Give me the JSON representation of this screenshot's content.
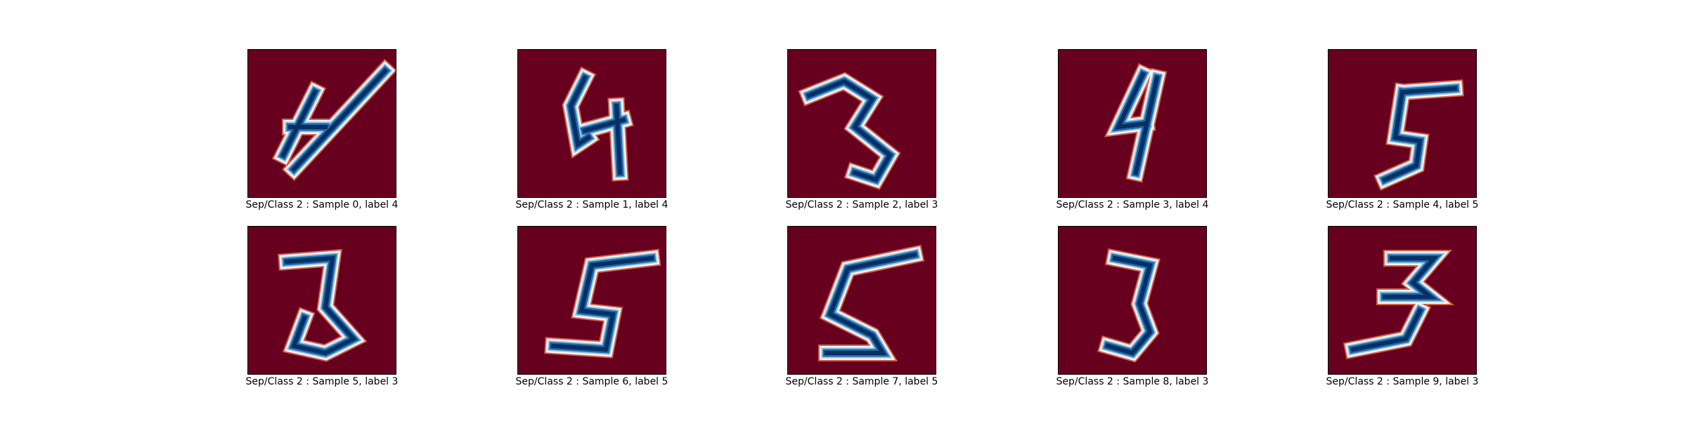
{
  "colors": {
    "background": "#67001f",
    "stroke_dark": "#053061",
    "stroke_mid": "#2166ac",
    "stroke_light": "#92c5de",
    "stroke_white": "#f7f7f7",
    "stroke_red": "#d6604d"
  },
  "panels": [
    {
      "caption": "Sep/Class 2 : Sample 0, label 4",
      "digit": "4"
    },
    {
      "caption": "Sep/Class 2 : Sample 1, label 4",
      "digit": "4"
    },
    {
      "caption": "Sep/Class 2 : Sample 2, label 3",
      "digit": "3"
    },
    {
      "caption": "Sep/Class 2 : Sample 3, label 4",
      "digit": "4"
    },
    {
      "caption": "Sep/Class 2 : Sample 4, label 5",
      "digit": "5"
    },
    {
      "caption": "Sep/Class 2 : Sample 5, label 3",
      "digit": "3"
    },
    {
      "caption": "Sep/Class 2 : Sample 6, label 5",
      "digit": "5"
    },
    {
      "caption": "Sep/Class 2 : Sample 7, label 5",
      "digit": "5"
    },
    {
      "caption": "Sep/Class 2 : Sample 8, label 3",
      "digit": "3"
    },
    {
      "caption": "Sep/Class 2 : Sample 9, label 3",
      "digit": "3"
    }
  ]
}
